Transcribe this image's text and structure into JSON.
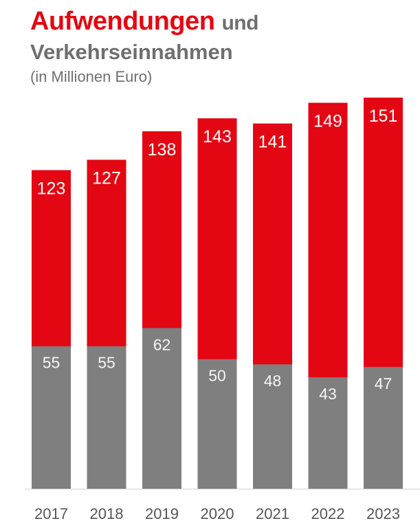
{
  "title": {
    "highlight": "Aufwendungen",
    "rest": "und",
    "line2": "Verkehrseinnahmen",
    "subtitle": "(in Millionen Euro)"
  },
  "colors": {
    "expenses": "#e30613",
    "revenue": "#7f7f7f",
    "axis": "#d0d0d0",
    "tick_label": "#555555",
    "value_label": "#ffffff"
  },
  "chart_data": {
    "type": "bar",
    "stacked": false,
    "categories": [
      "2017",
      "2018",
      "2019",
      "2020",
      "2021",
      "2022",
      "2023"
    ],
    "series": [
      {
        "values": [
          123,
          127,
          138,
          143,
          141,
          149,
          151
        ],
        "color": "#e30613"
      },
      {
        "values": [
          55,
          55,
          62,
          50,
          48,
          43,
          47
        ],
        "color": "#7f7f7f"
      }
    ],
    "ylim": [
      0,
      151
    ],
    "grid": false,
    "legend": "none"
  }
}
